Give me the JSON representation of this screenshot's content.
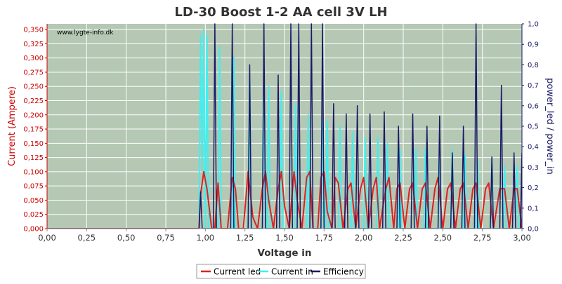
{
  "chart_data": {
    "type": "line",
    "title": "LD-30 Boost 1-2 AA cell 3V LH",
    "watermark": "www.lygte-info.dk",
    "xlabel": "Voltage in",
    "ylabel_left": "Current (Ampere)",
    "ylabel_right": "power_led / power_in",
    "xlim": [
      0,
      3.0
    ],
    "ylim_left": [
      0,
      0.36
    ],
    "ylim_right": [
      0,
      1.0
    ],
    "x_ticks": [
      "0,00",
      "0,25",
      "0,50",
      "0,75",
      "1,00",
      "1,25",
      "1,50",
      "1,75",
      "2,00",
      "2,25",
      "2,50",
      "2,75",
      "3,00"
    ],
    "y_left_ticks": [
      "0,000",
      "0,025",
      "0,050",
      "0,075",
      "0,100",
      "0,125",
      "0,150",
      "0,175",
      "0,200",
      "0,225",
      "0,250",
      "0,275",
      "0,300",
      "0,325",
      "0,350"
    ],
    "y_right_ticks": [
      "0,0",
      "0,1",
      "0,2",
      "0,3",
      "0,4",
      "0,5",
      "0,6",
      "0,7",
      "0,8",
      "0,9",
      "1,0"
    ],
    "grid": true,
    "legend_position": "bottom",
    "colors": {
      "plot_background": "#b4c8b4",
      "grid": "#ffffff",
      "left_axis": "#cc0000",
      "right_axis": "#1a1a66",
      "current_led": "#dd2222",
      "current_in": "#44eeee",
      "efficiency": "#1a1a66"
    },
    "series": [
      {
        "name": "Current led",
        "axis": "left",
        "points": [
          [
            0.0,
            0.0
          ],
          [
            0.96,
            0.0
          ],
          [
            0.97,
            0.06
          ],
          [
            0.99,
            0.1
          ],
          [
            1.01,
            0.07
          ],
          [
            1.04,
            0.0
          ],
          [
            1.06,
            0.0
          ],
          [
            1.08,
            0.08
          ],
          [
            1.1,
            0.0
          ],
          [
            1.14,
            0.0
          ],
          [
            1.17,
            0.09
          ],
          [
            1.19,
            0.07
          ],
          [
            1.21,
            0.0
          ],
          [
            1.24,
            0.0
          ],
          [
            1.27,
            0.1
          ],
          [
            1.3,
            0.02
          ],
          [
            1.33,
            0.0
          ],
          [
            1.36,
            0.07
          ],
          [
            1.38,
            0.1
          ],
          [
            1.4,
            0.05
          ],
          [
            1.43,
            0.0
          ],
          [
            1.46,
            0.07
          ],
          [
            1.48,
            0.1
          ],
          [
            1.5,
            0.04
          ],
          [
            1.53,
            0.0
          ],
          [
            1.56,
            0.1
          ],
          [
            1.58,
            0.05
          ],
          [
            1.61,
            0.0
          ],
          [
            1.64,
            0.09
          ],
          [
            1.66,
            0.1
          ],
          [
            1.68,
            0.0
          ],
          [
            1.71,
            0.0
          ],
          [
            1.73,
            0.09
          ],
          [
            1.75,
            0.1
          ],
          [
            1.77,
            0.03
          ],
          [
            1.8,
            0.0
          ],
          [
            1.82,
            0.09
          ],
          [
            1.84,
            0.08
          ],
          [
            1.87,
            0.0
          ],
          [
            1.9,
            0.07
          ],
          [
            1.92,
            0.08
          ],
          [
            1.95,
            0.0
          ],
          [
            1.98,
            0.07
          ],
          [
            2.0,
            0.09
          ],
          [
            2.03,
            0.0
          ],
          [
            2.06,
            0.07
          ],
          [
            2.08,
            0.09
          ],
          [
            2.1,
            0.0
          ],
          [
            2.14,
            0.07
          ],
          [
            2.16,
            0.09
          ],
          [
            2.19,
            0.0
          ],
          [
            2.21,
            0.07
          ],
          [
            2.23,
            0.08
          ],
          [
            2.26,
            0.0
          ],
          [
            2.29,
            0.07
          ],
          [
            2.31,
            0.08
          ],
          [
            2.34,
            0.0
          ],
          [
            2.37,
            0.07
          ],
          [
            2.39,
            0.08
          ],
          [
            2.42,
            0.0
          ],
          [
            2.45,
            0.07
          ],
          [
            2.47,
            0.09
          ],
          [
            2.5,
            0.0
          ],
          [
            2.53,
            0.07
          ],
          [
            2.55,
            0.08
          ],
          [
            2.58,
            0.0
          ],
          [
            2.61,
            0.07
          ],
          [
            2.63,
            0.08
          ],
          [
            2.66,
            0.0
          ],
          [
            2.69,
            0.07
          ],
          [
            2.71,
            0.08
          ],
          [
            2.74,
            0.0
          ],
          [
            2.77,
            0.07
          ],
          [
            2.79,
            0.08
          ],
          [
            2.82,
            0.0
          ],
          [
            2.86,
            0.07
          ],
          [
            2.89,
            0.07
          ],
          [
            2.92,
            0.0
          ],
          [
            2.95,
            0.07
          ],
          [
            2.97,
            0.07
          ],
          [
            3.0,
            0.0
          ]
        ]
      },
      {
        "name": "Current in",
        "axis": "left",
        "points": [
          [
            0.0,
            0.0
          ],
          [
            0.96,
            0.0
          ],
          [
            0.97,
            0.34
          ],
          [
            0.98,
            0.1
          ],
          [
            0.99,
            0.35
          ],
          [
            1.0,
            0.0
          ],
          [
            1.01,
            0.34
          ],
          [
            1.02,
            0.0
          ],
          [
            1.08,
            0.0
          ],
          [
            1.09,
            0.32
          ],
          [
            1.1,
            0.0
          ],
          [
            1.17,
            0.0
          ],
          [
            1.18,
            0.3
          ],
          [
            1.19,
            0.0
          ],
          [
            1.27,
            0.0
          ],
          [
            1.28,
            0.27
          ],
          [
            1.29,
            0.0
          ],
          [
            1.36,
            0.0
          ],
          [
            1.37,
            0.25
          ],
          [
            1.38,
            0.0
          ],
          [
            1.39,
            0.0
          ],
          [
            1.4,
            0.25
          ],
          [
            1.41,
            0.0
          ],
          [
            1.47,
            0.0
          ],
          [
            1.48,
            0.24
          ],
          [
            1.49,
            0.0
          ],
          [
            1.56,
            0.0
          ],
          [
            1.57,
            0.22
          ],
          [
            1.58,
            0.0
          ],
          [
            1.64,
            0.0
          ],
          [
            1.65,
            0.2
          ],
          [
            1.66,
            0.0
          ],
          [
            1.73,
            0.0
          ],
          [
            1.74,
            0.19
          ],
          [
            1.75,
            0.0
          ],
          [
            1.76,
            0.0
          ],
          [
            1.77,
            0.19
          ],
          [
            1.78,
            0.0
          ],
          [
            1.84,
            0.0
          ],
          [
            1.85,
            0.18
          ],
          [
            1.86,
            0.0
          ],
          [
            1.92,
            0.0
          ],
          [
            1.93,
            0.17
          ],
          [
            1.94,
            0.0
          ],
          [
            2.0,
            0.0
          ],
          [
            2.01,
            0.16
          ],
          [
            2.02,
            0.0
          ],
          [
            2.08,
            0.0
          ],
          [
            2.09,
            0.16
          ],
          [
            2.1,
            0.0
          ],
          [
            2.14,
            0.0
          ],
          [
            2.15,
            0.15
          ],
          [
            2.16,
            0.0
          ],
          [
            2.22,
            0.0
          ],
          [
            2.23,
            0.14
          ],
          [
            2.24,
            0.0
          ],
          [
            2.32,
            0.0
          ],
          [
            2.33,
            0.14
          ],
          [
            2.34,
            0.0
          ],
          [
            2.38,
            0.0
          ],
          [
            2.39,
            0.14
          ],
          [
            2.4,
            0.0
          ],
          [
            2.47,
            0.0
          ],
          [
            2.48,
            0.13
          ],
          [
            2.49,
            0.0
          ],
          [
            2.55,
            0.0
          ],
          [
            2.56,
            0.14
          ],
          [
            2.57,
            0.0
          ],
          [
            2.63,
            0.0
          ],
          [
            2.64,
            0.13
          ],
          [
            2.65,
            0.0
          ],
          [
            2.71,
            0.0
          ],
          [
            2.72,
            0.12
          ],
          [
            2.73,
            0.0
          ],
          [
            2.8,
            0.0
          ],
          [
            2.81,
            0.12
          ],
          [
            2.82,
            0.0
          ],
          [
            2.88,
            0.0
          ],
          [
            2.89,
            0.11
          ],
          [
            2.9,
            0.0
          ],
          [
            2.96,
            0.0
          ],
          [
            2.97,
            0.11
          ],
          [
            2.98,
            0.0
          ],
          [
            3.0,
            0.0
          ]
        ]
      },
      {
        "name": "Efficiency",
        "axis": "right",
        "points": [
          [
            0.0,
            0.0
          ],
          [
            0.96,
            0.0
          ],
          [
            0.97,
            0.18
          ],
          [
            0.98,
            0.0
          ],
          [
            1.05,
            0.0
          ],
          [
            1.06,
            1.0
          ],
          [
            1.07,
            0.0
          ],
          [
            1.16,
            0.0
          ],
          [
            1.17,
            1.0
          ],
          [
            1.18,
            0.0
          ],
          [
            1.27,
            0.0
          ],
          [
            1.28,
            0.8
          ],
          [
            1.29,
            0.0
          ],
          [
            1.36,
            0.0
          ],
          [
            1.37,
            1.0
          ],
          [
            1.38,
            0.0
          ],
          [
            1.45,
            0.0
          ],
          [
            1.46,
            0.75
          ],
          [
            1.47,
            0.0
          ],
          [
            1.53,
            0.0
          ],
          [
            1.54,
            1.0
          ],
          [
            1.55,
            0.0
          ],
          [
            1.58,
            0.0
          ],
          [
            1.59,
            1.0
          ],
          [
            1.6,
            0.0
          ],
          [
            1.66,
            0.0
          ],
          [
            1.67,
            1.0
          ],
          [
            1.68,
            0.0
          ],
          [
            1.73,
            0.0
          ],
          [
            1.74,
            1.0
          ],
          [
            1.75,
            0.0
          ],
          [
            1.8,
            0.0
          ],
          [
            1.81,
            0.61
          ],
          [
            1.82,
            0.0
          ],
          [
            1.88,
            0.0
          ],
          [
            1.89,
            0.56
          ],
          [
            1.9,
            0.0
          ],
          [
            1.95,
            0.0
          ],
          [
            1.96,
            0.6
          ],
          [
            1.97,
            0.0
          ],
          [
            2.03,
            0.0
          ],
          [
            2.04,
            0.56
          ],
          [
            2.05,
            0.0
          ],
          [
            2.12,
            0.0
          ],
          [
            2.13,
            0.57
          ],
          [
            2.14,
            0.0
          ],
          [
            2.21,
            0.0
          ],
          [
            2.22,
            0.5
          ],
          [
            2.23,
            0.0
          ],
          [
            2.3,
            0.0
          ],
          [
            2.31,
            0.56
          ],
          [
            2.32,
            0.0
          ],
          [
            2.39,
            0.0
          ],
          [
            2.4,
            0.5
          ],
          [
            2.41,
            0.0
          ],
          [
            2.47,
            0.0
          ],
          [
            2.48,
            0.55
          ],
          [
            2.49,
            0.0
          ],
          [
            2.55,
            0.0
          ],
          [
            2.56,
            0.37
          ],
          [
            2.57,
            0.0
          ],
          [
            2.62,
            0.0
          ],
          [
            2.63,
            0.5
          ],
          [
            2.64,
            0.0
          ],
          [
            2.7,
            0.0
          ],
          [
            2.71,
            1.0
          ],
          [
            2.72,
            0.0
          ],
          [
            2.8,
            0.0
          ],
          [
            2.81,
            0.35
          ],
          [
            2.82,
            0.0
          ],
          [
            2.86,
            0.0
          ],
          [
            2.87,
            0.7
          ],
          [
            2.88,
            0.0
          ],
          [
            2.94,
            0.0
          ],
          [
            2.95,
            0.37
          ],
          [
            2.96,
            0.0
          ],
          [
            2.99,
            0.0
          ],
          [
            3.0,
            0.37
          ]
        ]
      }
    ]
  }
}
